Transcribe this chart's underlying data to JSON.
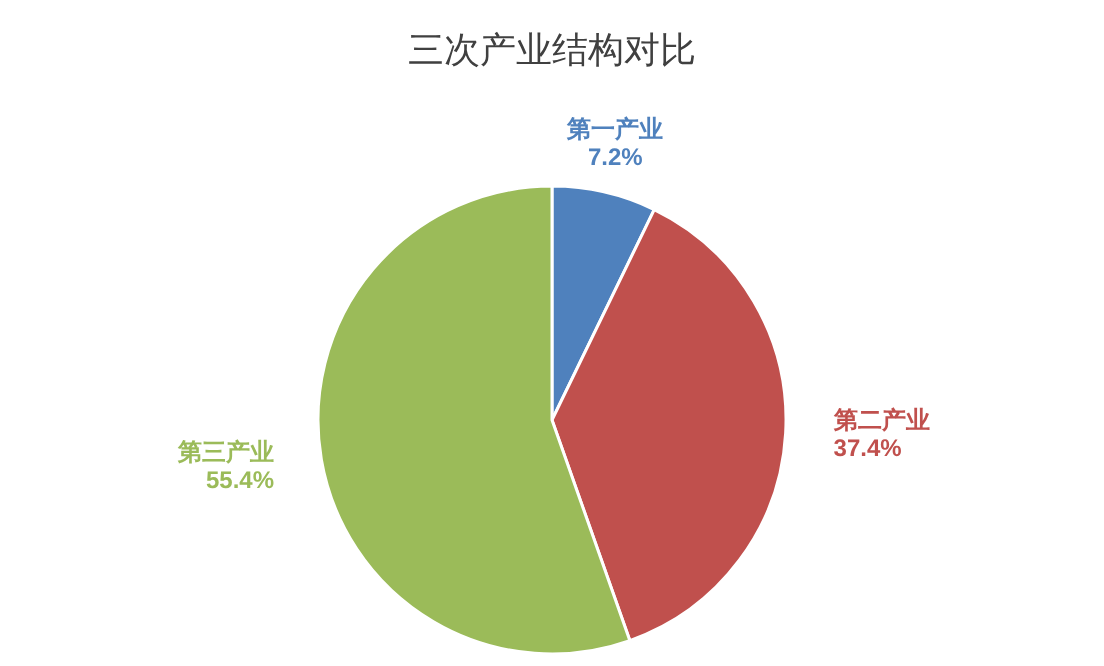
{
  "chart_data": {
    "type": "pie",
    "title": "三次产业结构对比",
    "categories": [
      "第一产业",
      "第二产业",
      "第三产业"
    ],
    "values": [
      7.2,
      37.4,
      55.4
    ],
    "colors": [
      "#4f81bd",
      "#c0504d",
      "#9bbb59"
    ],
    "value_labels": [
      "7.2%",
      "37.4%",
      "55.4%"
    ]
  }
}
